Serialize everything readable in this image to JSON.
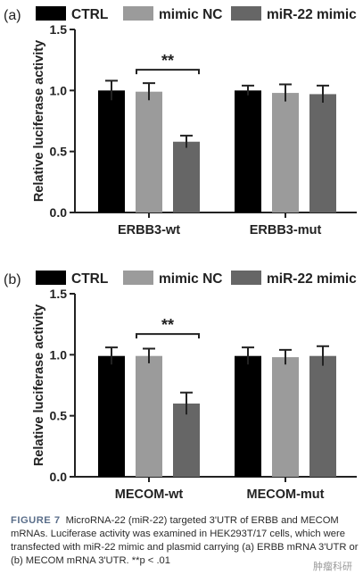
{
  "legend": [
    {
      "label": "CTRL",
      "color": "#000000"
    },
    {
      "label": "mimic NC",
      "color": "#9b9b9b"
    },
    {
      "label": "miR-22 mimic",
      "color": "#666666"
    }
  ],
  "chart_data": [
    {
      "type": "bar",
      "panel_label": "(a)",
      "ylabel": "Relative luciferase activity",
      "ylim": [
        0,
        1.5
      ],
      "yticks": [
        "0.0",
        "0.5",
        "1.0",
        "1.5"
      ],
      "categories": [
        "ERBB3-wt",
        "ERBB3-mut"
      ],
      "series": [
        {
          "name": "CTRL",
          "values": [
            1.0,
            1.0
          ],
          "errors": [
            0.08,
            0.04
          ]
        },
        {
          "name": "mimic NC",
          "values": [
            0.99,
            0.98
          ],
          "errors": [
            0.07,
            0.07
          ]
        },
        {
          "name": "miR-22 mimic",
          "values": [
            0.58,
            0.97
          ],
          "errors": [
            0.05,
            0.07
          ]
        }
      ],
      "significance": {
        "label": "**",
        "group": 0,
        "from": 1,
        "to": 2
      }
    },
    {
      "type": "bar",
      "panel_label": "(b)",
      "ylabel": "Relative luciferase activity",
      "ylim": [
        0,
        1.5
      ],
      "yticks": [
        "0.0",
        "0.5",
        "1.0",
        "1.5"
      ],
      "categories": [
        "MECOM-wt",
        "MECOM-mut"
      ],
      "series": [
        {
          "name": "CTRL",
          "values": [
            0.99,
            0.99
          ],
          "errors": [
            0.07,
            0.07
          ]
        },
        {
          "name": "mimic NC",
          "values": [
            0.99,
            0.98
          ],
          "errors": [
            0.06,
            0.06
          ]
        },
        {
          "name": "miR-22 mimic",
          "values": [
            0.6,
            0.99
          ],
          "errors": [
            0.09,
            0.08
          ]
        }
      ],
      "significance": {
        "label": "**",
        "group": 0,
        "from": 1,
        "to": 2
      }
    }
  ],
  "caption": {
    "label": "FIGURE 7",
    "text": "MicroRNA-22 (miR-22) targeted 3'UTR of ERBB and MECOM mRNAs. Luciferase activity was examined in HEK293T/17 cells, which were transfected with miR-22 mimic and plasmid carrying (a) ERBB mRNA 3'UTR or (b) MECOM mRNA 3'UTR. **p < .01"
  },
  "watermark": "肿瘤科研"
}
